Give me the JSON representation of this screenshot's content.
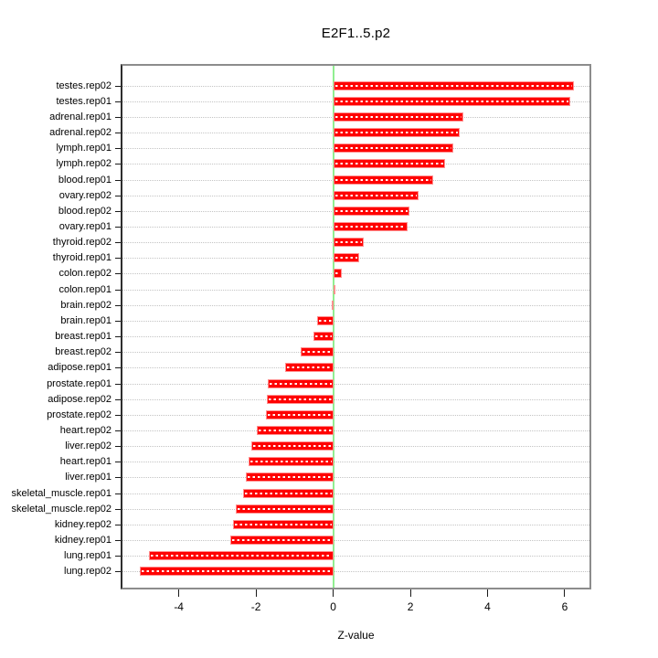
{
  "title": "E2F1..5.p2",
  "chart_data": {
    "type": "bar",
    "orientation": "horizontal",
    "title": "E2F1..5.p2",
    "xlabel": "Z-value",
    "ylabel": "",
    "xlim": [
      -5.46,
      6.64
    ],
    "grid": true,
    "legend": "none",
    "categories": [
      "testes.rep02",
      "testes.rep01",
      "adrenal.rep01",
      "adrenal.rep02",
      "lymph.rep01",
      "lymph.rep02",
      "blood.rep01",
      "ovary.rep02",
      "blood.rep02",
      "ovary.rep01",
      "thyroid.rep02",
      "thyroid.rep01",
      "colon.rep02",
      "colon.rep01",
      "brain.rep02",
      "brain.rep01",
      "breast.rep01",
      "breast.rep02",
      "adipose.rep01",
      "prostate.rep01",
      "adipose.rep02",
      "prostate.rep02",
      "heart.rep02",
      "liver.rep02",
      "heart.rep01",
      "liver.rep01",
      "skeletal_muscle.rep01",
      "skeletal_muscle.rep02",
      "kidney.rep02",
      "kidney.rep01",
      "lung.rep01",
      "lung.rep02"
    ],
    "values": [
      6.23,
      6.14,
      3.38,
      3.27,
      3.12,
      2.89,
      2.58,
      2.22,
      1.98,
      1.92,
      0.79,
      0.68,
      0.23,
      0.04,
      -0.02,
      -0.42,
      -0.52,
      -0.84,
      -1.25,
      -1.69,
      -1.71,
      -1.74,
      -1.98,
      -2.12,
      -2.2,
      -2.27,
      -2.34,
      -2.52,
      -2.6,
      -2.66,
      -4.77,
      -5.01
    ],
    "xticks": [
      -4,
      -2,
      0,
      2,
      4,
      6
    ],
    "xtick_labels": [
      "-4",
      "-2",
      "0",
      "2",
      "4",
      "6"
    ],
    "colors": {
      "bar_fill": "#ff0000",
      "bar_border": "#ff9191",
      "bar_dash": "#ffffff",
      "zero_line": "#90ee90",
      "grid_line": "#c4c4c4",
      "box_border": "#8c8c8c",
      "axis_line": "#2e2e2e",
      "text": "#000000",
      "background": "#ffffff"
    }
  }
}
